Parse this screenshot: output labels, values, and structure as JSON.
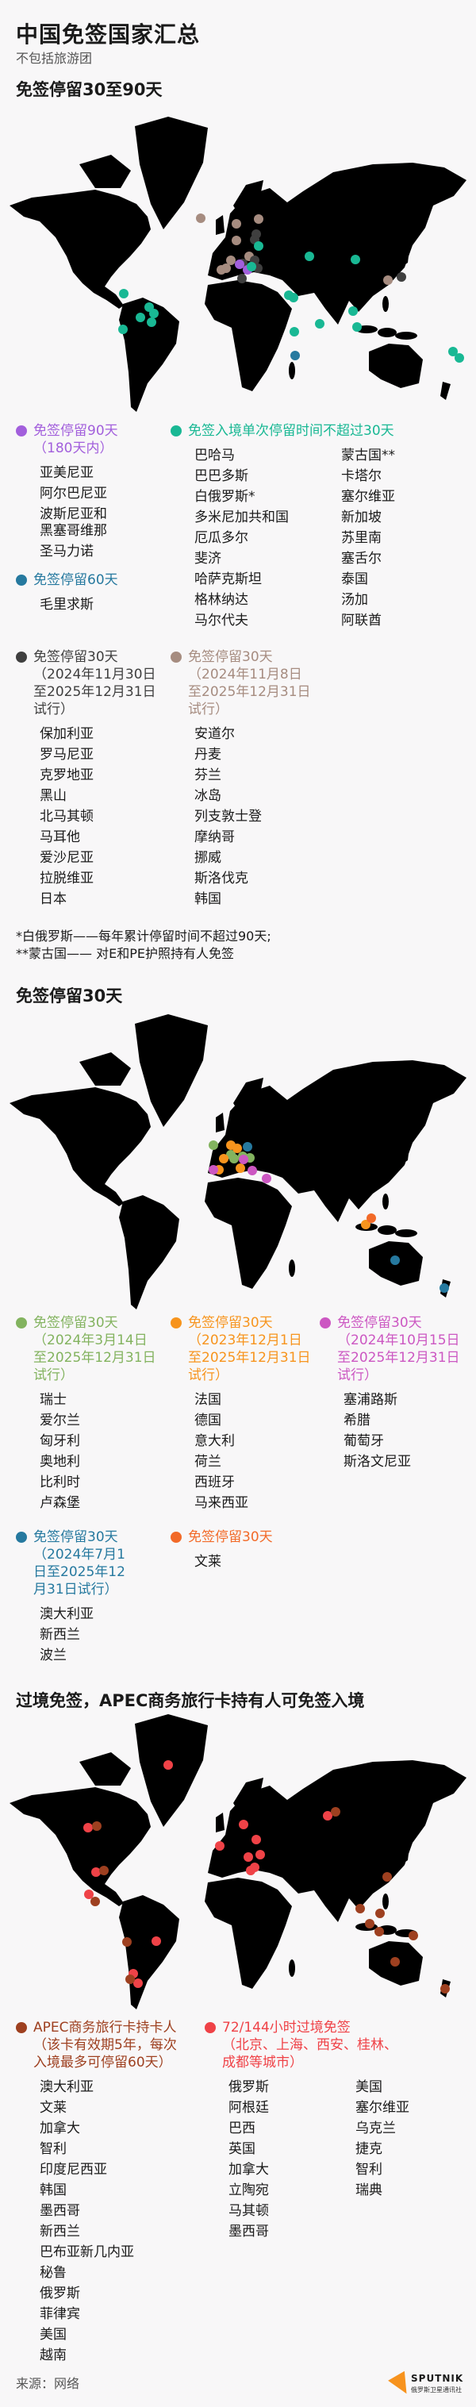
{
  "header": {
    "title": "中国免签国家汇总",
    "subtitle": "不包括旅游团"
  },
  "colors": {
    "purple": "#a25fdc",
    "teal": "#19b894",
    "blue60": "#26799f",
    "dark": "#3f3f3f",
    "brown": "#a68c80",
    "green": "#83b35f",
    "orange": "#f7941d",
    "magenta": "#cc57c2",
    "blue": "#26799f",
    "orange_red": "#f26a28",
    "apec": "#9e4020",
    "red": "#ef4247"
  },
  "section1": {
    "title": "免签停留30至90天",
    "groups": {
      "d90": {
        "title": "免签停留90天",
        "note": "（180天内）",
        "items": [
          "亚美尼亚",
          "阿尔巴尼亚",
          "波斯尼亚和黑塞哥维那",
          "圣马力诺"
        ]
      },
      "d60": {
        "title": "免签停留60天",
        "items": [
          "毛里求斯"
        ]
      },
      "single30": {
        "title": "免签入境单次停留时间不超过30天",
        "col1": [
          "巴哈马",
          "巴巴多斯",
          "白俄罗斯*",
          "多米尼加共和国",
          "厄瓜多尔",
          "斐济",
          "哈萨克斯坦",
          "格林纳达",
          "马尔代夫"
        ],
        "col2": [
          "蒙古国**",
          "卡塔尔",
          "塞尔维亚",
          "新加坡",
          "苏里南",
          "塞舌尔",
          "泰国",
          "汤加",
          "阿联酋"
        ]
      },
      "trial_nov30": {
        "title": "免签停留30天",
        "note": "（2024年11月30日至2025年12月31日试行）",
        "items": [
          "保加利亚",
          "罗马尼亚",
          "克罗地亚",
          "黑山",
          "北马其顿",
          "马耳他",
          "爱沙尼亚",
          "拉脱维亚",
          "日本"
        ]
      },
      "trial_nov8": {
        "title": "免签停留30天",
        "note": "（2024年11月8日至2025年12月31日试行）",
        "items": [
          "安道尔",
          "丹麦",
          "芬兰",
          "冰岛",
          "列支敦士登",
          "摩纳哥",
          "挪威",
          "斯洛伐克",
          "韩国"
        ]
      }
    },
    "footnotes": [
      "*白俄罗斯——每年累计停留时间不超过90天;",
      "**蒙古国—— 对E和PE护照持有人免签"
    ]
  },
  "section2": {
    "title": "免签停留30天",
    "groups": {
      "green": {
        "title": "免签停留30天",
        "note": "（2024年3月14日至2025年12月31日试行）",
        "items": [
          "瑞士",
          "爱尔兰",
          "匈牙利",
          "奥地利",
          "比利时",
          "卢森堡"
        ]
      },
      "orange": {
        "title": "免签停留30天",
        "note": "（2023年12月1日至2025年12月31日试行）",
        "items": [
          "法国",
          "德国",
          "意大利",
          "荷兰",
          "西班牙",
          "马来西亚"
        ]
      },
      "magenta": {
        "title": "免签停留30天",
        "note": "（2024年10月15日至2025年12月31日试行）",
        "items": [
          "塞浦路斯",
          "希腊",
          "葡萄牙",
          "斯洛文尼亚"
        ]
      },
      "blue": {
        "title": "免签停留30天",
        "note": "（2024年7月1日至2025年12月31日试行）",
        "items": [
          "澳大利亚",
          "新西兰",
          "波兰"
        ]
      },
      "orange_red": {
        "title": "免签停留30天",
        "items": [
          "文莱"
        ]
      }
    }
  },
  "section3": {
    "title": "过境免签，APEC商务旅行卡持有人可免签入境",
    "groups": {
      "apec": {
        "title": "APEC商务旅行卡持卡人",
        "note": "（该卡有效期5年，每次入境最多可停留60天）",
        "items": [
          "澳大利亚",
          "文莱",
          "加拿大",
          "智利",
          "印度尼西亚",
          "韩国",
          "墨西哥",
          "新西兰",
          "巴布亚新几内亚",
          "秘鲁",
          "俄罗斯",
          "菲律宾",
          "美国",
          "越南"
        ]
      },
      "transit": {
        "title": "72/144小时过境免签",
        "note": "（北京、上海、西安、桂林、成都等城市）",
        "col1": [
          "俄罗斯",
          "阿根廷",
          "巴西",
          "英国",
          "加拿大",
          "立陶宛",
          "马其顿",
          "墨西哥"
        ],
        "col2": [
          "美国",
          "塞尔维亚",
          "乌克兰",
          "捷克",
          "智利",
          "瑞典"
        ]
      }
    }
  },
  "footer": {
    "source": "来源：网络",
    "logo_name": "SPUTNIK",
    "logo_sub": "俄罗斯卫星通讯社"
  }
}
